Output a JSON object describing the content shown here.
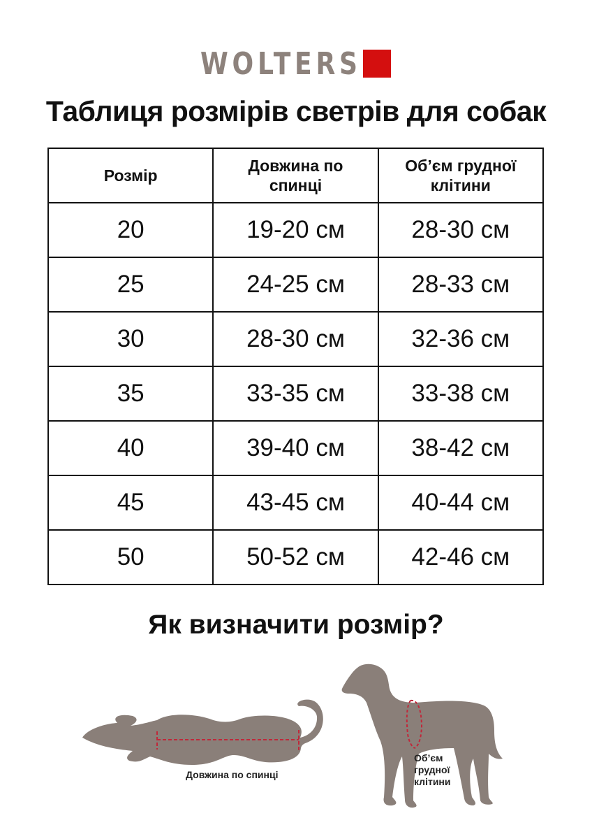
{
  "brand": {
    "name": "WOLTERS",
    "accent_color": "#d40f0f",
    "text_color": "#8d827c"
  },
  "title": "Таблиця розмірів светрів для собак",
  "table": {
    "headers": [
      "Розмір",
      "Довжина по спинці",
      "Об’єм грудної клітини"
    ],
    "rows": [
      [
        "20",
        "19-20 см",
        "28-30 см"
      ],
      [
        "25",
        "24-25 см",
        "28-33 см"
      ],
      [
        "30",
        "28-30 см",
        "32-36 см"
      ],
      [
        "35",
        "33-35 см",
        "33-38 см"
      ],
      [
        "40",
        "39-40 см",
        "38-42 см"
      ],
      [
        "45",
        "43-45 см",
        "40-44 см"
      ],
      [
        "50",
        "50-52 см",
        "42-46 см"
      ]
    ]
  },
  "how_to": {
    "title": "Як визначити розмір?",
    "back_length_label": "Довжина по спинці",
    "chest_label_lines": [
      "Об’єм",
      "грудної",
      "клітини"
    ],
    "silhouette_color": "#8a7f79",
    "measure_color": "#c0283a"
  }
}
